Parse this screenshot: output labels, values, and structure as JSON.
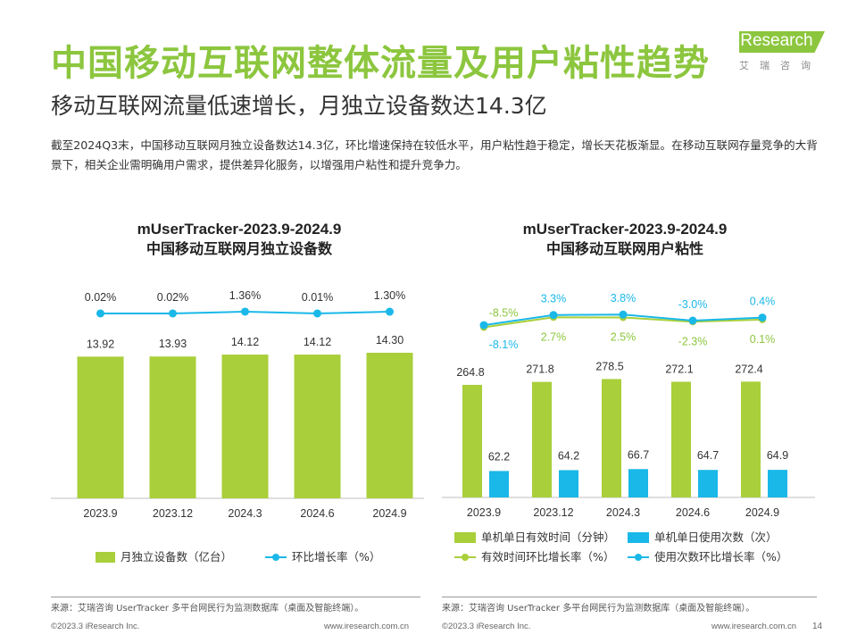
{
  "page": {
    "title": "中国移动互联网整体流量及用户粘性趋势",
    "subtitle": "移动互联网流量低速增长，月独立设备数达14.3亿",
    "body": "截至2024Q3末，中国移动互联网月独立设备数达14.3亿，环比增速保持在较低水平，用户粘性趋于稳定，增长天花板渐显。在移动互联网存量竞争的大背景下，相关企业需明确用户需求，提供差异化服务，以增强用户粘性和提升竞争力。",
    "page_number": "14"
  },
  "logo": {
    "text": "iResearch",
    "sub": "艾瑞咨询"
  },
  "colors": {
    "green": "#8cc63e",
    "blue": "#1ab8e8",
    "olive": "#a9cf3a"
  },
  "footer": {
    "source_left": "来源：艾瑞咨询 UserTracker 多平台网民行为监测数据库（桌面及智能终端）。",
    "source_right": "来源：艾瑞咨询 UserTracker 多平台网民行为监测数据库（桌面及智能终端）。",
    "copyright_left": "©2023.3 iResearch Inc.",
    "url_left": "www.iresearch.com.cn",
    "copyright_right": "©2023.3 iResearch Inc.",
    "url_right": "www.iresearch.com.cn"
  },
  "chart_data": [
    {
      "type": "bar",
      "title": "mUserTracker-2023.9-2024.9",
      "subtitle": "中国移动互联网月独立设备数",
      "categories": [
        "2023.9",
        "2023.12",
        "2024.3",
        "2024.6",
        "2024.9"
      ],
      "series": [
        {
          "name": "月独立设备数（亿台）",
          "type": "bar",
          "values": [
            13.92,
            13.93,
            14.12,
            14.12,
            14.3
          ],
          "labels": [
            "13.92",
            "13.93",
            "14.12",
            "14.12",
            "14.30"
          ]
        },
        {
          "name": "环比增长率（%）",
          "type": "line",
          "values": [
            0.02,
            0.02,
            1.36,
            0.01,
            1.3
          ],
          "labels": [
            "0.02%",
            "0.02%",
            "1.36%",
            "0.01%",
            "1.30%"
          ]
        }
      ],
      "legend": [
        "月独立设备数（亿台）",
        "环比增长率（%）"
      ]
    },
    {
      "type": "bar",
      "title": "mUserTracker-2023.9-2024.9",
      "subtitle": "中国移动互联网用户粘性",
      "categories": [
        "2023.9",
        "2023.12",
        "2024.3",
        "2024.6",
        "2024.9"
      ],
      "series": [
        {
          "name": "单机单日有效时间（分钟）",
          "type": "bar",
          "values": [
            264.8,
            271.8,
            278.5,
            272.1,
            272.4
          ],
          "labels": [
            "264.8",
            "271.8",
            "278.5",
            "272.1",
            "272.4"
          ]
        },
        {
          "name": "单机单日使用次数（次）",
          "type": "bar",
          "values": [
            62.2,
            64.2,
            66.7,
            64.7,
            64.9
          ],
          "labels": [
            "62.2",
            "64.2",
            "66.7",
            "64.7",
            "64.9"
          ]
        },
        {
          "name": "有效时间环比增长率（%）",
          "type": "line",
          "values": [
            -8.5,
            2.7,
            2.5,
            -2.3,
            0.1
          ],
          "labels": [
            "-8.5%",
            "2.7%",
            "2.5%",
            "-2.3%",
            "0.1%"
          ]
        },
        {
          "name": "使用次数环比增长率（%）",
          "type": "line",
          "values": [
            -8.1,
            3.3,
            3.8,
            -3.0,
            0.4
          ],
          "labels": [
            "-8.1%",
            "3.3%",
            "3.8%",
            "-3.0%",
            "0.4%"
          ]
        }
      ],
      "legend": [
        "单机单日有效时间（分钟）",
        "单机单日使用次数（次）",
        "有效时间环比增长率（%）",
        "使用次数环比增长率（%）"
      ]
    }
  ]
}
